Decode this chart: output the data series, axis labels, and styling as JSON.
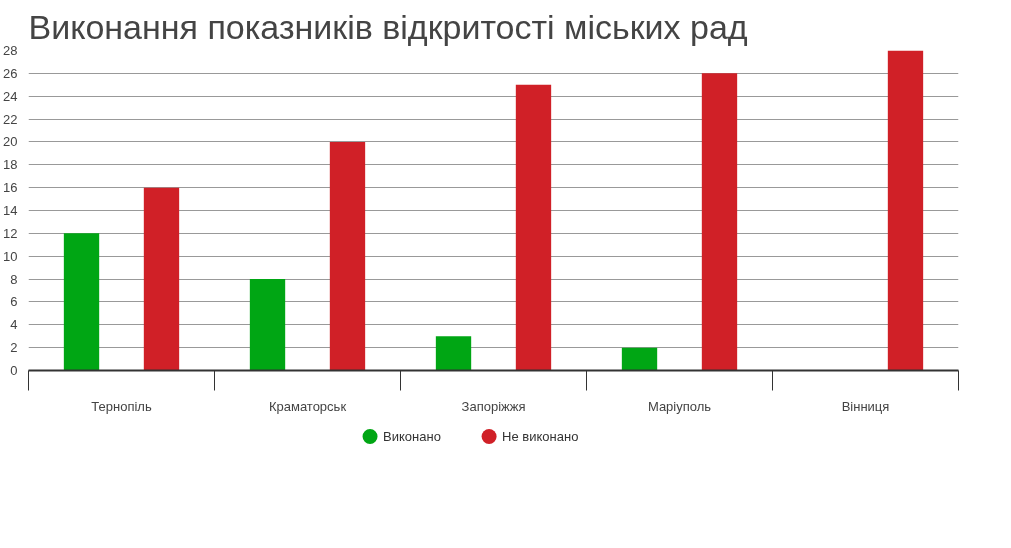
{
  "chart_data": {
    "type": "bar",
    "title": "Виконання показників відкритості міських рад",
    "categories": [
      "Тернопіль",
      "Краматорськ",
      "Запоріжжя",
      "Маріуполь",
      "Вінниця"
    ],
    "series": [
      {
        "name": "Виконано",
        "color": "#00a614",
        "values": [
          12,
          8,
          3,
          2,
          0
        ]
      },
      {
        "name": "Не виконано",
        "color": "#d02027",
        "values": [
          16,
          20,
          25,
          26,
          28
        ]
      }
    ],
    "ylim": [
      0,
      28
    ],
    "yticks": [
      0,
      2,
      4,
      6,
      8,
      10,
      12,
      14,
      16,
      18,
      20,
      22,
      24,
      26,
      28
    ],
    "grid": "y",
    "legend": "bottom"
  }
}
